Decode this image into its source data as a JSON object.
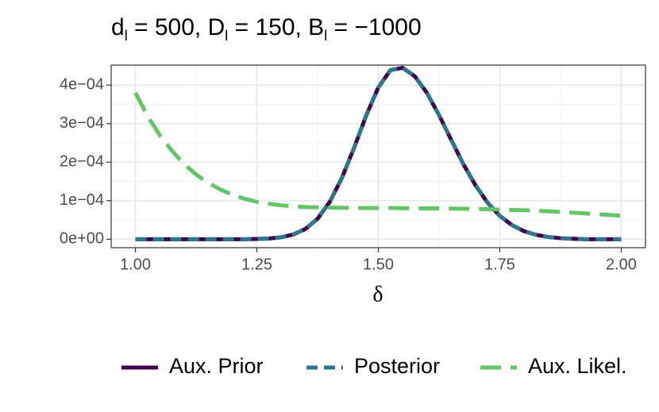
{
  "chart_data": {
    "type": "line",
    "title": [
      "d",
      "l",
      " = 500, D",
      "l",
      " = 150, B",
      "l",
      " = −1000"
    ],
    "xlabel": "δ",
    "x": [
      1.0,
      1.025,
      1.05,
      1.075,
      1.1,
      1.125,
      1.15,
      1.175,
      1.2,
      1.225,
      1.25,
      1.275,
      1.3,
      1.325,
      1.35,
      1.375,
      1.4,
      1.425,
      1.45,
      1.475,
      1.5,
      1.525,
      1.55,
      1.575,
      1.6,
      1.625,
      1.65,
      1.675,
      1.7,
      1.725,
      1.75,
      1.775,
      1.8,
      1.825,
      1.85,
      1.875,
      1.9,
      1.925,
      1.95,
      1.975,
      2.0
    ],
    "series": [
      {
        "name": "Aux. Prior",
        "color": "#440154",
        "dash": "solid",
        "values": [
          0,
          0,
          0,
          0,
          0,
          0,
          0,
          0,
          0,
          0,
          6e-07,
          1.8e-06,
          5e-06,
          1.21e-05,
          2.66e-05,
          5.32e-05,
          9.68e-05,
          0.000159,
          0.000237,
          0.000321,
          0.000394,
          0.000439,
          0.000445,
          0.000423,
          0.00038,
          0.000322,
          0.000258,
          0.000195,
          0.00014,
          9.47e-05,
          6.05e-05,
          3.67e-05,
          2.08e-05,
          1.13e-05,
          5.7e-06,
          2.6e-06,
          1.1e-06,
          0,
          0,
          0,
          0
        ]
      },
      {
        "name": "Posterior",
        "color": "#2a788e",
        "dash": "dashed",
        "values": [
          0,
          0,
          0,
          0,
          0,
          0,
          0,
          0,
          0,
          0,
          6e-07,
          1.8e-06,
          5e-06,
          1.21e-05,
          2.66e-05,
          5.32e-05,
          9.68e-05,
          0.000159,
          0.000237,
          0.000321,
          0.000394,
          0.000439,
          0.000445,
          0.000423,
          0.00038,
          0.000322,
          0.000258,
          0.000195,
          0.00014,
          9.47e-05,
          6.05e-05,
          3.67e-05,
          2.08e-05,
          1.13e-05,
          5.7e-06,
          2.6e-06,
          1.1e-06,
          0,
          0,
          0,
          0
        ]
      },
      {
        "name": "Aux. Likel.",
        "color": "#5ec962",
        "dash": "longdash",
        "values": [
          0.00038,
          0.00032,
          0.00027,
          0.00023,
          0.000195,
          0.000168,
          0.000146,
          0.000129,
          0.000115,
          0.000105,
          9.7e-05,
          9.2e-05,
          8.8e-05,
          8.5e-05,
          8.35e-05,
          8.25e-05,
          8.2e-05,
          8.15e-05,
          8.1e-05,
          8.1e-05,
          8.1e-05,
          8.1e-05,
          8.05e-05,
          8.05e-05,
          8e-05,
          8e-05,
          7.95e-05,
          7.9e-05,
          7.85e-05,
          7.8e-05,
          7.7e-05,
          7.6e-05,
          7.5e-05,
          7.4e-05,
          7.25e-05,
          7.1e-05,
          6.9e-05,
          6.7e-05,
          6.5e-05,
          6.3e-05,
          6.1e-05
        ]
      }
    ],
    "xlim": [
      0.95,
      2.05
    ],
    "ylim": [
      -2.2e-05,
      0.000452
    ],
    "xticks": [
      {
        "value": 1,
        "label": "1.00"
      },
      1.25,
      {
        "value": 1.5,
        "label": "1.50"
      },
      1.75,
      {
        "value": 2,
        "label": "2.00"
      }
    ],
    "yticks": [
      {
        "value": 0,
        "label": "0e+00"
      },
      {
        "value": 0.0001,
        "label": "1e−04"
      },
      {
        "value": 0.0002,
        "label": "2e−04"
      },
      {
        "value": 0.0003,
        "label": "3e−04"
      },
      {
        "value": 0.0004,
        "label": "4e−04"
      }
    ],
    "x_minor_grid": [
      1.125,
      1.375,
      1.625,
      1.875
    ],
    "y_minor_grid": [
      5e-05,
      0.00015,
      0.00025,
      0.00035
    ],
    "grid": true,
    "legend": "bottom"
  }
}
